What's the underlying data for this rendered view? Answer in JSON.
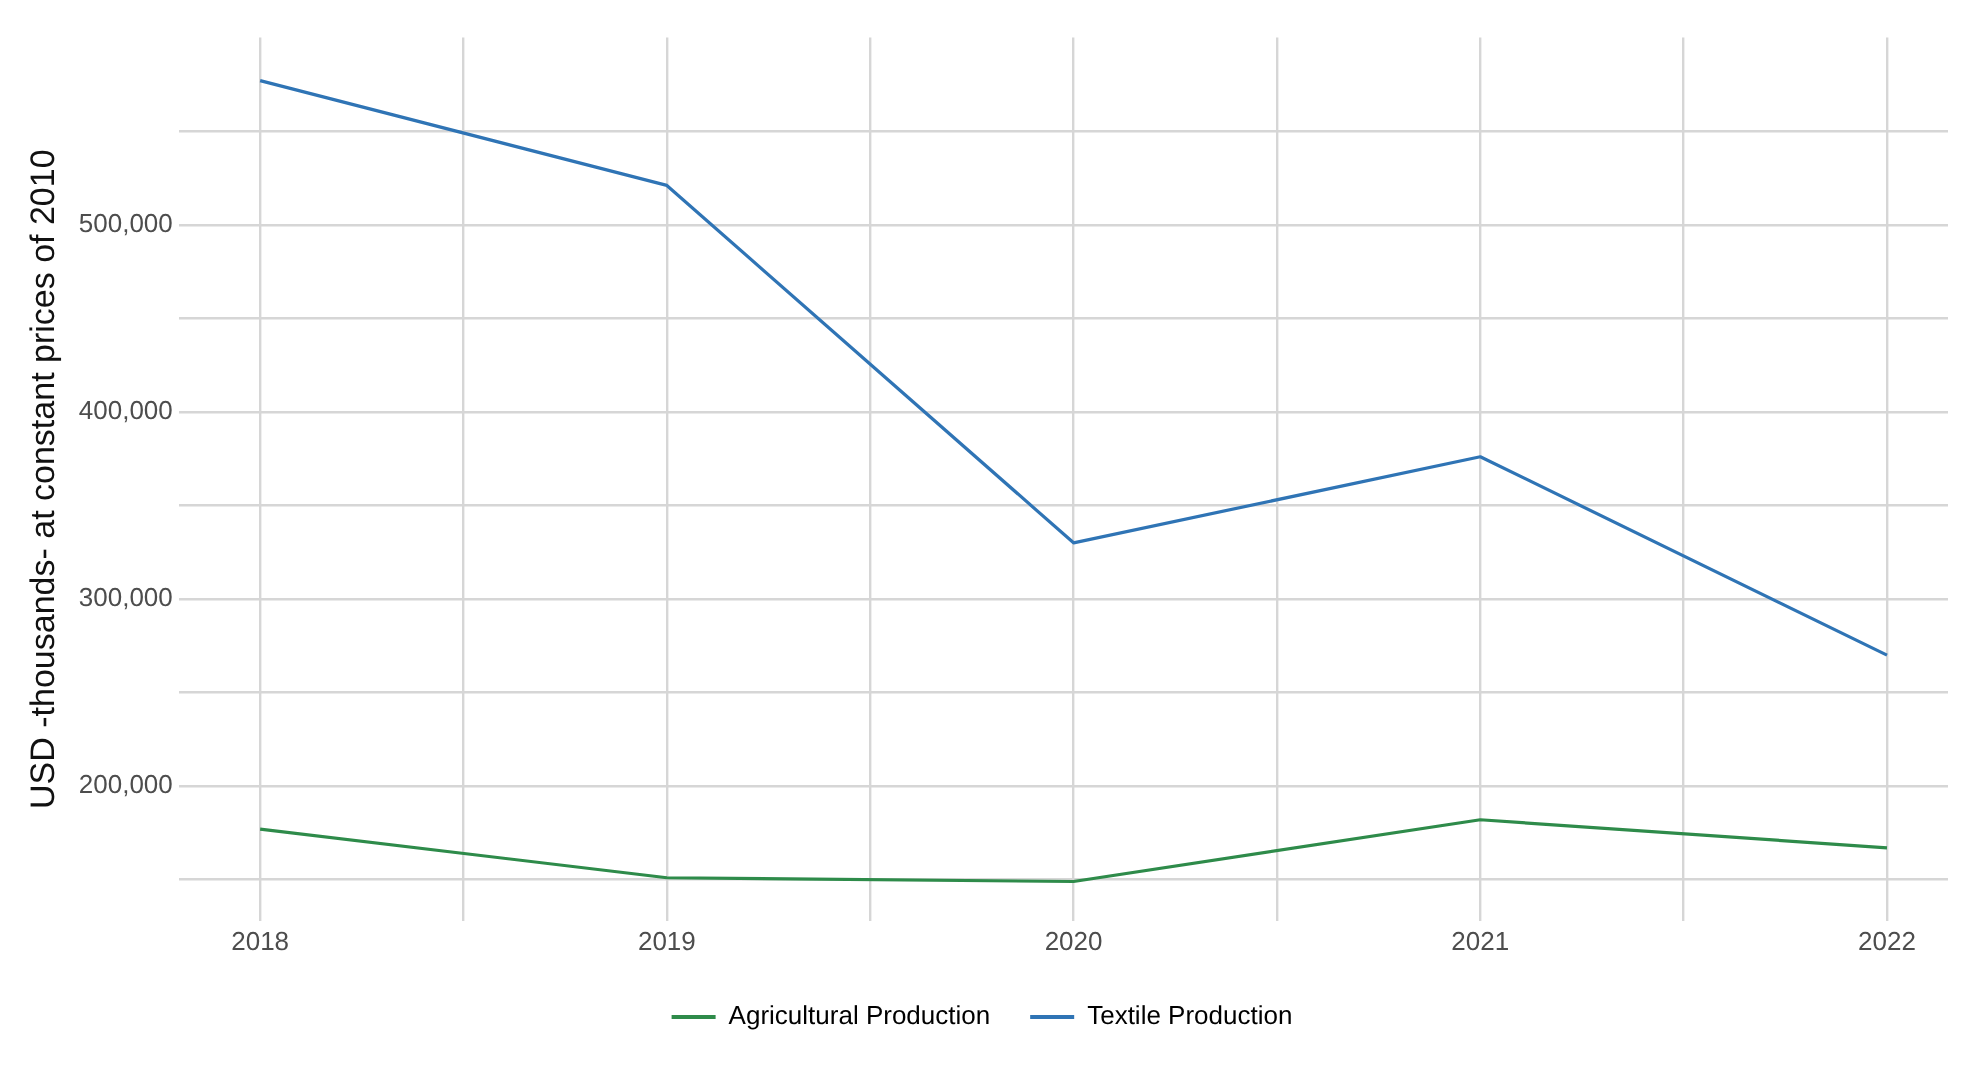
{
  "chart_data": {
    "type": "line",
    "ylabel": "USD -thousands- at constant prices of 2010",
    "x": [
      2018,
      2019,
      2020,
      2021,
      2022
    ],
    "series": [
      {
        "name": "Agricultural Production",
        "color": "#2e8b4a",
        "values": [
          177000,
          151000,
          149000,
          182000,
          167000
        ]
      },
      {
        "name": "Textile Production",
        "color": "#2f74b5",
        "values": [
          577000,
          521000,
          330000,
          376000,
          270000
        ]
      }
    ],
    "xlim": [
      2017.8,
      2022.15
    ],
    "xticks": [
      2018,
      {
        "value": 2018.5,
        "label": null
      },
      2019,
      {
        "value": 2019.5,
        "label": null
      },
      2020,
      {
        "value": 2020.5,
        "label": null
      },
      2021,
      {
        "value": 2021.5,
        "label": null
      },
      2022
    ],
    "ylim": [
      128000,
      600000
    ],
    "yticks": [
      {
        "value": 150000,
        "label": null
      },
      {
        "value": 200000,
        "label": "200,000"
      },
      {
        "value": 250000,
        "label": null
      },
      {
        "value": 300000,
        "label": "300,000"
      },
      {
        "value": 350000,
        "label": null
      },
      {
        "value": 400000,
        "label": "400,000"
      },
      {
        "value": 450000,
        "label": null
      },
      {
        "value": 500000,
        "label": "500,000"
      },
      {
        "value": 550000,
        "label": null
      }
    ],
    "grid": true,
    "legend": "bottom",
    "marker": "none",
    "line_style": "solid"
  }
}
